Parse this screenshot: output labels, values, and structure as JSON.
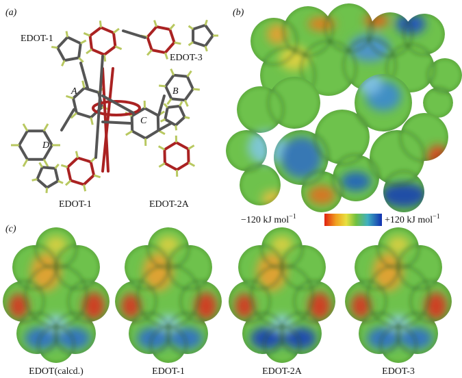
{
  "panels": {
    "a": "(a)",
    "b": "(b)",
    "c": "(c)"
  },
  "molecule_labels": {
    "edot1_top": "EDOT-1",
    "edot3": "EDOT-3",
    "ring_a": "A",
    "ring_b": "B",
    "ring_c": "C",
    "ring_d": "D",
    "edot1_bottom": "EDOT-1",
    "edot2a": "EDOT-2A"
  },
  "colorbar": {
    "min_label": "−120 kJ mol",
    "min_sup": "−1",
    "max_label": "+120 kJ mol",
    "max_sup": "−1"
  },
  "captions": [
    "EDOT(calcd.)",
    "EDOT-1",
    "EDOT-2A",
    "EDOT-3"
  ]
}
